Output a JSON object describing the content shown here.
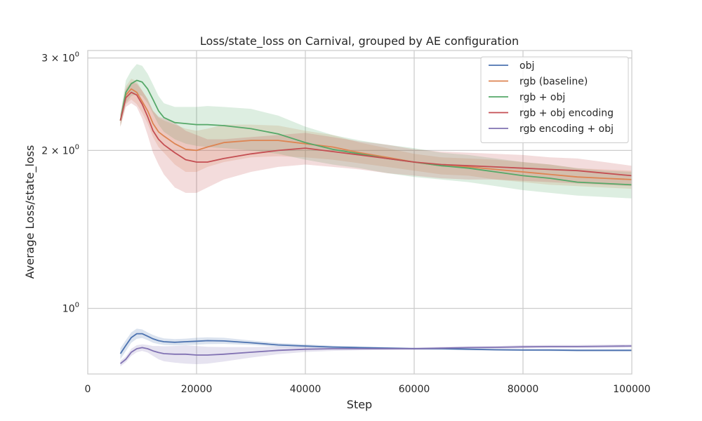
{
  "chart_data": {
    "type": "line",
    "title": "Loss/state_loss on Carnival, grouped by AE configuration",
    "xlabel": "Step",
    "ylabel": "Average Loss/state_loss",
    "xlim": [
      0,
      100000
    ],
    "ylim": [
      0.75,
      3.1
    ],
    "yscale": "log",
    "grid": true,
    "legend_position": "top-right",
    "x_ticks": [
      {
        "value": 0,
        "label": "0"
      },
      {
        "value": 20000,
        "label": "20000"
      },
      {
        "value": 40000,
        "label": "40000"
      },
      {
        "value": 60000,
        "label": "60000"
      },
      {
        "value": 80000,
        "label": "80000"
      },
      {
        "value": 100000,
        "label": "100000"
      }
    ],
    "y_ticks": [
      {
        "value": 1,
        "base": "10",
        "exp": "0"
      },
      {
        "value": 2,
        "base": "2 × 10",
        "exp": "0"
      },
      {
        "value": 3,
        "base": "3 × 10",
        "exp": "0"
      }
    ],
    "series": [
      {
        "name": "obj",
        "color": "#4c72b0",
        "x": [
          6000,
          7000,
          8000,
          9000,
          10000,
          11000,
          12000,
          13000,
          14000,
          16000,
          18000,
          20000,
          22000,
          25000,
          30000,
          35000,
          40000,
          45000,
          50000,
          55000,
          60000,
          65000,
          70000,
          75000,
          80000,
          85000,
          90000,
          95000,
          100000
        ],
        "y": [
          0.82,
          0.85,
          0.88,
          0.895,
          0.895,
          0.885,
          0.875,
          0.868,
          0.864,
          0.862,
          0.864,
          0.866,
          0.868,
          0.867,
          0.86,
          0.852,
          0.848,
          0.844,
          0.842,
          0.84,
          0.838,
          0.838,
          0.836,
          0.834,
          0.833,
          0.833,
          0.832,
          0.832,
          0.832
        ],
        "lower": [
          0.8,
          0.83,
          0.86,
          0.875,
          0.878,
          0.87,
          0.86,
          0.855,
          0.852,
          0.85,
          0.852,
          0.853,
          0.855,
          0.856,
          0.852,
          0.845,
          0.842,
          0.84,
          0.838,
          0.836,
          0.835,
          0.834,
          0.832,
          0.831,
          0.83,
          0.829,
          0.828,
          0.828,
          0.828
        ],
        "upper": [
          0.84,
          0.87,
          0.9,
          0.915,
          0.912,
          0.9,
          0.89,
          0.882,
          0.877,
          0.874,
          0.876,
          0.879,
          0.881,
          0.879,
          0.869,
          0.859,
          0.854,
          0.849,
          0.846,
          0.844,
          0.842,
          0.842,
          0.84,
          0.838,
          0.837,
          0.837,
          0.836,
          0.836,
          0.836
        ]
      },
      {
        "name": "rgb (baseline)",
        "color": "#dd8452",
        "x": [
          6000,
          7000,
          8000,
          9000,
          10000,
          11000,
          12000,
          13000,
          14000,
          16000,
          18000,
          20000,
          22000,
          25000,
          30000,
          35000,
          40000,
          45000,
          50000,
          55000,
          60000,
          65000,
          70000,
          75000,
          80000,
          85000,
          90000,
          95000,
          100000
        ],
        "y": [
          2.28,
          2.55,
          2.62,
          2.58,
          2.48,
          2.38,
          2.25,
          2.17,
          2.13,
          2.06,
          2.01,
          2.0,
          2.03,
          2.07,
          2.09,
          2.09,
          2.06,
          2.03,
          1.98,
          1.94,
          1.9,
          1.87,
          1.86,
          1.84,
          1.82,
          1.8,
          1.78,
          1.77,
          1.76
        ],
        "lower": [
          2.22,
          2.45,
          2.5,
          2.45,
          2.36,
          2.25,
          2.12,
          2.03,
          1.98,
          1.88,
          1.82,
          1.82,
          1.86,
          1.9,
          1.94,
          1.95,
          1.94,
          1.92,
          1.89,
          1.86,
          1.83,
          1.8,
          1.79,
          1.76,
          1.74,
          1.72,
          1.71,
          1.7,
          1.69
        ],
        "upper": [
          2.34,
          2.65,
          2.74,
          2.71,
          2.6,
          2.51,
          2.38,
          2.31,
          2.28,
          2.24,
          2.2,
          2.18,
          2.2,
          2.24,
          2.24,
          2.23,
          2.18,
          2.14,
          2.07,
          2.02,
          1.97,
          1.94,
          1.93,
          1.92,
          1.9,
          1.88,
          1.85,
          1.84,
          1.83
        ]
      },
      {
        "name": "rgb + obj",
        "color": "#55a868",
        "x": [
          6000,
          7000,
          8000,
          9000,
          10000,
          11000,
          12000,
          13000,
          14000,
          16000,
          18000,
          20000,
          22000,
          25000,
          30000,
          35000,
          40000,
          45000,
          50000,
          55000,
          60000,
          65000,
          70000,
          75000,
          80000,
          85000,
          90000,
          95000,
          100000
        ],
        "y": [
          2.28,
          2.58,
          2.68,
          2.72,
          2.7,
          2.62,
          2.5,
          2.38,
          2.31,
          2.26,
          2.25,
          2.24,
          2.24,
          2.23,
          2.2,
          2.15,
          2.07,
          2.01,
          1.97,
          1.93,
          1.9,
          1.87,
          1.85,
          1.82,
          1.79,
          1.77,
          1.74,
          1.73,
          1.72
        ],
        "lower": [
          2.22,
          2.46,
          2.54,
          2.56,
          2.54,
          2.46,
          2.35,
          2.24,
          2.17,
          2.1,
          2.06,
          2.04,
          2.03,
          2.02,
          2.0,
          1.97,
          1.92,
          1.88,
          1.85,
          1.81,
          1.78,
          1.76,
          1.74,
          1.71,
          1.68,
          1.66,
          1.64,
          1.63,
          1.62
        ],
        "upper": [
          2.34,
          2.72,
          2.84,
          2.92,
          2.9,
          2.8,
          2.67,
          2.54,
          2.46,
          2.42,
          2.42,
          2.42,
          2.43,
          2.42,
          2.4,
          2.33,
          2.22,
          2.14,
          2.09,
          2.05,
          2.02,
          1.98,
          1.96,
          1.93,
          1.9,
          1.88,
          1.85,
          1.83,
          1.82
        ]
      },
      {
        "name": "rgb + obj encoding",
        "color": "#c44e52",
        "x": [
          6000,
          7000,
          8000,
          9000,
          10000,
          11000,
          12000,
          13000,
          14000,
          16000,
          18000,
          20000,
          22000,
          25000,
          30000,
          35000,
          40000,
          45000,
          50000,
          55000,
          60000,
          65000,
          70000,
          75000,
          80000,
          85000,
          90000,
          95000,
          100000
        ],
        "y": [
          2.28,
          2.52,
          2.58,
          2.55,
          2.45,
          2.32,
          2.18,
          2.1,
          2.05,
          1.98,
          1.92,
          1.9,
          1.9,
          1.93,
          1.97,
          2.0,
          2.02,
          1.99,
          1.96,
          1.93,
          1.9,
          1.88,
          1.87,
          1.86,
          1.85,
          1.84,
          1.83,
          1.81,
          1.79
        ],
        "lower": [
          2.22,
          2.42,
          2.46,
          2.42,
          2.3,
          2.14,
          1.98,
          1.88,
          1.8,
          1.7,
          1.66,
          1.66,
          1.7,
          1.76,
          1.82,
          1.86,
          1.88,
          1.86,
          1.84,
          1.81,
          1.79,
          1.77,
          1.76,
          1.76,
          1.75,
          1.74,
          1.73,
          1.72,
          1.71
        ],
        "upper": [
          2.34,
          2.62,
          2.7,
          2.68,
          2.6,
          2.5,
          2.38,
          2.32,
          2.3,
          2.26,
          2.18,
          2.14,
          2.1,
          2.1,
          2.12,
          2.14,
          2.16,
          2.12,
          2.08,
          2.05,
          2.01,
          1.99,
          1.98,
          1.97,
          1.96,
          1.94,
          1.93,
          1.9,
          1.87
        ]
      },
      {
        "name": "rgb encoding + obj",
        "color": "#8172b3",
        "x": [
          6000,
          7000,
          8000,
          9000,
          10000,
          11000,
          12000,
          13000,
          14000,
          16000,
          18000,
          20000,
          22000,
          25000,
          30000,
          35000,
          40000,
          45000,
          50000,
          55000,
          60000,
          65000,
          70000,
          75000,
          80000,
          85000,
          90000,
          95000,
          100000
        ],
        "y": [
          0.785,
          0.8,
          0.825,
          0.838,
          0.842,
          0.838,
          0.83,
          0.824,
          0.82,
          0.818,
          0.818,
          0.815,
          0.815,
          0.818,
          0.825,
          0.832,
          0.836,
          0.838,
          0.838,
          0.838,
          0.838,
          0.84,
          0.842,
          0.843,
          0.845,
          0.846,
          0.846,
          0.847,
          0.848
        ],
        "lower": [
          0.775,
          0.79,
          0.812,
          0.825,
          0.83,
          0.824,
          0.812,
          0.8,
          0.793,
          0.788,
          0.785,
          0.783,
          0.785,
          0.792,
          0.806,
          0.818,
          0.826,
          0.83,
          0.832,
          0.833,
          0.834,
          0.835,
          0.837,
          0.838,
          0.839,
          0.84,
          0.84,
          0.841,
          0.842
        ],
        "upper": [
          0.795,
          0.81,
          0.838,
          0.851,
          0.854,
          0.852,
          0.848,
          0.848,
          0.847,
          0.848,
          0.851,
          0.848,
          0.845,
          0.844,
          0.844,
          0.846,
          0.846,
          0.846,
          0.844,
          0.843,
          0.842,
          0.845,
          0.847,
          0.848,
          0.851,
          0.852,
          0.852,
          0.853,
          0.854
        ]
      }
    ]
  }
}
